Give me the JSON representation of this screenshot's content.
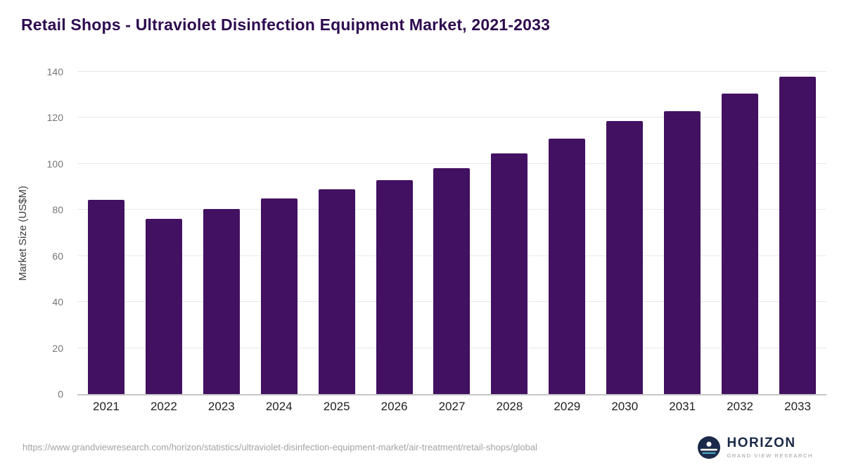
{
  "title": "Retail Shops - Ultraviolet Disinfection Equipment Market, 2021-2033",
  "footer": {
    "url": "https://www.grandviewresearch.com/horizon/statistics/ultraviolet-disinfection-equipment-market/air-treatment/retail-shops/global",
    "logo_name": "HORIZON",
    "logo_sub": "GRAND VIEW RESEARCH"
  },
  "colors": {
    "bar": "#421161",
    "title": "#2e0a4f",
    "gridline": "#e8e8e8",
    "axis_line": "#c6c6c6",
    "logo_navy": "#1b2a49"
  },
  "chart_data": {
    "type": "bar",
    "title": "Retail Shops - Ultraviolet Disinfection Equipment Market, 2021-2033",
    "categories": [
      "2021",
      "2022",
      "2023",
      "2024",
      "2025",
      "2026",
      "2027",
      "2028",
      "2029",
      "2030",
      "2031",
      "2032",
      "2033"
    ],
    "values": [
      84.5,
      76,
      80.5,
      85,
      89,
      93,
      98,
      104.5,
      111,
      118.5,
      123,
      130.5,
      138
    ],
    "xlabel": "",
    "ylabel": "Market Size (US$M)",
    "ylim": [
      0,
      140
    ],
    "yticks": [
      0,
      20,
      40,
      60,
      80,
      100,
      120,
      140
    ],
    "grid": "horizontal",
    "legend": "none",
    "bar_color": "#421161"
  }
}
